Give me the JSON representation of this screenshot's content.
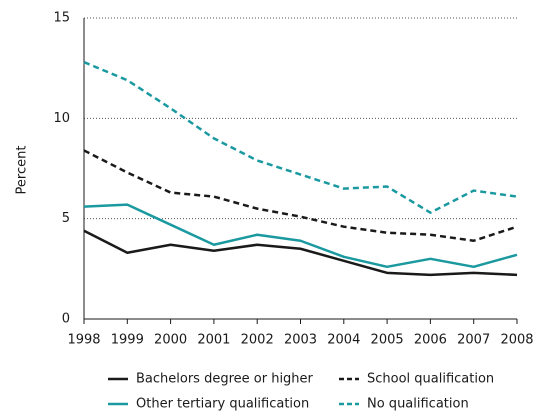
{
  "chart_data": {
    "type": "line",
    "y_label": "Percent",
    "x": [
      1998,
      1999,
      2000,
      2001,
      2002,
      2003,
      2004,
      2005,
      2006,
      2007,
      2008
    ],
    "xlim": [
      1998,
      2008
    ],
    "xticks": [
      1998,
      1999,
      2000,
      2001,
      2002,
      2003,
      2004,
      2005,
      2006,
      2007,
      2008
    ],
    "ylim": [
      0,
      15
    ],
    "yticks": [
      0,
      5,
      10,
      15
    ],
    "grid": true,
    "legend": "bottom",
    "series": [
      {
        "name": "Bachelors degree or higher",
        "color": "#1a1a1a",
        "dashed": false,
        "values": [
          4.4,
          3.3,
          3.7,
          3.4,
          3.7,
          3.5,
          2.9,
          2.3,
          2.2,
          2.3,
          2.2
        ]
      },
      {
        "name": "School qualification",
        "color": "#1a1a1a",
        "dashed": true,
        "values": [
          8.4,
          7.3,
          6.3,
          6.1,
          5.5,
          5.1,
          4.6,
          4.3,
          4.2,
          3.9,
          4.6
        ]
      },
      {
        "name": "Other tertiary qualification",
        "color": "#1a9aa0",
        "dashed": false,
        "values": [
          5.6,
          5.7,
          4.7,
          3.7,
          4.2,
          3.9,
          3.1,
          2.6,
          3.0,
          2.6,
          3.2
        ]
      },
      {
        "name": "No qualification",
        "color": "#1a9aa0",
        "dashed": true,
        "values": [
          12.8,
          11.9,
          10.5,
          9.0,
          7.9,
          7.2,
          6.5,
          6.6,
          5.3,
          6.4,
          6.1
        ]
      }
    ]
  }
}
